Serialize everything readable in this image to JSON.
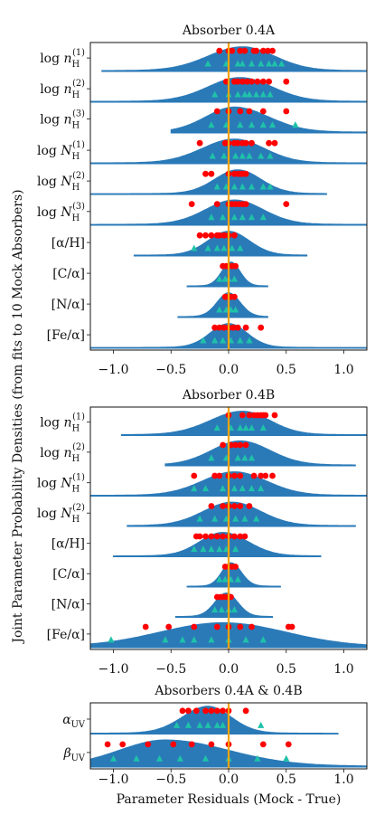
{
  "figure": {
    "ylabel": "Joint Parameter Probability Densities (from fits to 10 Mock Absorbers)",
    "xlabel": "Parameter Residuals (Mock - True)"
  },
  "chart_data": [
    {
      "type": "violin",
      "title": "Absorber 0.4A",
      "xlim": [
        -1.2,
        1.2
      ],
      "xticks": [
        -1.0,
        -0.5,
        0.0,
        0.5,
        1.0
      ],
      "xtick_labels": [
        "−1.0",
        "−0.5",
        "0.0",
        "0.5",
        "1.0"
      ],
      "reference_line": 0.0,
      "colors": {
        "violin": "#2a7ab8",
        "mock_fit": "#ff0000",
        "true": "#1fc2a8",
        "reference": "#f5a300"
      },
      "rows": [
        {
          "label": "log n_H^(1)",
          "center": 0.12,
          "sl": 0.3,
          "sr": 0.28,
          "xmin": -1.1,
          "xmax": 1.2,
          "h": 0.78,
          "red": [
            -0.08,
            0.0,
            0.03,
            0.1,
            0.14,
            0.22,
            0.24,
            0.3,
            0.34,
            0.38
          ],
          "green": [
            -0.18,
            -0.02,
            0.08,
            0.12,
            0.2,
            0.28,
            0.35,
            0.4,
            0.46
          ]
        },
        {
          "label": "log n_H^(2)",
          "center": 0.1,
          "sl": 0.28,
          "sr": 0.28,
          "xmin": -1.2,
          "xmax": 1.2,
          "h": 0.78,
          "red": [
            -0.02,
            0.05,
            0.08,
            0.12,
            0.16,
            0.2,
            0.25,
            0.3,
            0.35,
            0.5
          ],
          "green": [
            -0.12,
            0.0,
            0.08,
            0.14,
            0.18,
            0.24,
            0.3,
            0.36
          ]
        },
        {
          "label": "log n_H^(3)",
          "center": 0.05,
          "sl": 0.25,
          "sr": 0.3,
          "xmin": -0.5,
          "xmax": 1.2,
          "h": 0.82,
          "red": [
            -0.1,
            0.0,
            0.1,
            0.18,
            0.3,
            0.5
          ],
          "green": [
            -0.15,
            -0.02,
            0.1,
            0.2,
            0.3,
            0.38,
            0.58
          ]
        },
        {
          "label": "log N_H^(1)",
          "center": 0.05,
          "sl": 0.28,
          "sr": 0.26,
          "xmin": -1.2,
          "xmax": 1.2,
          "h": 0.78,
          "red": [
            -0.25,
            -0.03,
            0.0,
            0.05,
            0.08,
            0.12,
            0.15,
            0.2,
            0.35,
            0.4
          ],
          "green": [
            -0.14,
            -0.04,
            0.06,
            0.12,
            0.18,
            0.28,
            0.36
          ]
        },
        {
          "label": "log N_H^(2)",
          "center": 0.08,
          "sl": 0.2,
          "sr": 0.2,
          "xmin": -1.2,
          "xmax": 0.85,
          "h": 0.78,
          "red": [
            -0.2,
            -0.15,
            0.0,
            0.05,
            0.08,
            0.1,
            0.12,
            0.15
          ],
          "green": [
            -0.1,
            -0.02,
            0.05,
            0.12,
            0.2,
            0.3,
            0.36
          ]
        },
        {
          "label": "log N_H^(3)",
          "center": 0.05,
          "sl": 0.25,
          "sr": 0.25,
          "xmin": -1.2,
          "xmax": 1.2,
          "h": 0.8,
          "red": [
            -0.32,
            -0.1,
            0.0,
            0.03,
            0.06,
            0.09,
            0.12,
            0.15,
            0.5
          ],
          "green": [
            -0.15,
            -0.05,
            0.05,
            0.12,
            0.2,
            0.3
          ]
        },
        {
          "label": "[α/H]",
          "center": 0.0,
          "sl": 0.18,
          "sr": 0.18,
          "xmin": -0.82,
          "xmax": 0.68,
          "h": 0.78,
          "red": [
            -0.25,
            -0.2,
            -0.15,
            -0.1,
            -0.08,
            -0.04,
            0.0,
            0.05
          ],
          "green": [
            -0.3,
            -0.18,
            -0.1,
            -0.04,
            0.03,
            0.1
          ]
        },
        {
          "label": "[C/α]",
          "center": 0.02,
          "sl": 0.08,
          "sr": 0.08,
          "xmin": -0.36,
          "xmax": 0.34,
          "h": 0.78,
          "red": [
            -0.05,
            -0.02,
            0.0,
            0.03,
            0.06
          ],
          "green": [
            -0.08,
            -0.03,
            0.0,
            0.05
          ]
        },
        {
          "label": "[N/α]",
          "center": 0.0,
          "sl": 0.1,
          "sr": 0.1,
          "xmin": -0.44,
          "xmax": 0.34,
          "h": 0.78,
          "red": [
            -0.03,
            0.0,
            0.02,
            0.05
          ],
          "green": [
            -0.08,
            -0.02,
            0.02,
            0.06
          ]
        },
        {
          "label": "[Fe/α]",
          "center": 0.0,
          "sl": 0.16,
          "sr": 0.16,
          "xmin": -1.2,
          "xmax": 1.2,
          "h": 0.78,
          "red": [
            -0.12,
            -0.08,
            -0.04,
            0.0,
            0.04,
            0.08,
            0.15,
            0.28
          ],
          "green": [
            -0.22,
            -0.12,
            -0.05,
            0.02,
            0.1,
            0.18
          ]
        }
      ]
    },
    {
      "type": "violin",
      "title": "Absorber 0.4B",
      "xlim": [
        -1.2,
        1.2
      ],
      "xticks": [
        -1.0,
        -0.5,
        0.0,
        0.5,
        1.0
      ],
      "xtick_labels": [
        "−1.0",
        "−0.5",
        "0.0",
        "0.5",
        "1.0"
      ],
      "reference_line": 0.0,
      "colors": {
        "violin": "#2a7ab8",
        "mock_fit": "#ff0000",
        "true": "#1fc2a8",
        "reference": "#f5a300"
      },
      "rows": [
        {
          "label": "log n_H^(1)",
          "center": 0.12,
          "sl": 0.28,
          "sr": 0.24,
          "xmin": -0.93,
          "xmax": 1.2,
          "h": 0.78,
          "red": [
            0.0,
            0.12,
            0.18,
            0.22,
            0.25,
            0.28,
            0.3,
            0.32,
            0.4
          ],
          "green": [
            -0.1,
            0.02,
            0.1,
            0.15,
            0.2,
            0.3
          ]
        },
        {
          "label": "log n_H^(2)",
          "center": 0.1,
          "sl": 0.25,
          "sr": 0.26,
          "xmin": -0.55,
          "xmax": 1.1,
          "h": 0.8,
          "red": [
            -0.05,
            0.02,
            0.06,
            0.1,
            0.15
          ],
          "green": [
            -0.15,
            -0.02,
            0.08,
            0.14,
            0.2
          ]
        },
        {
          "label": "log N_H^(1)",
          "center": 0.05,
          "sl": 0.28,
          "sr": 0.28,
          "xmin": -1.2,
          "xmax": 1.2,
          "h": 0.78,
          "red": [
            -0.3,
            -0.12,
            -0.08,
            0.0,
            0.05,
            0.1,
            0.22,
            0.28,
            0.32,
            0.38
          ],
          "green": [
            -0.3,
            -0.2,
            -0.05,
            0.05,
            0.12,
            0.2,
            0.28
          ]
        },
        {
          "label": "log N_H^(2)",
          "center": 0.03,
          "sl": 0.25,
          "sr": 0.25,
          "xmin": -0.88,
          "xmax": 1.1,
          "h": 0.78,
          "red": [
            -0.15,
            -0.05,
            0.0,
            0.05,
            0.1,
            0.18
          ],
          "green": [
            -0.25,
            -0.12,
            -0.02,
            0.06,
            0.14,
            0.24
          ]
        },
        {
          "label": "[α/H]",
          "center": -0.05,
          "sl": 0.2,
          "sr": 0.22,
          "xmin": -1.0,
          "xmax": 0.8,
          "h": 0.78,
          "red": [
            -0.28,
            -0.25,
            -0.2,
            -0.15,
            -0.1,
            -0.05,
            0.0,
            0.05,
            0.1,
            0.14
          ],
          "green": [
            -0.3,
            -0.22,
            -0.15,
            -0.08,
            -0.02,
            0.06
          ]
        },
        {
          "label": "[C/α]",
          "center": 0.02,
          "sl": 0.08,
          "sr": 0.09,
          "xmin": -0.36,
          "xmax": 0.45,
          "h": 0.78,
          "red": [
            -0.03,
            0.0,
            0.03,
            0.06
          ],
          "green": [
            -0.08,
            -0.03,
            0.02,
            0.08
          ]
        },
        {
          "label": "[N/α]",
          "center": -0.02,
          "sl": 0.1,
          "sr": 0.1,
          "xmin": -0.46,
          "xmax": 0.38,
          "h": 0.78,
          "red": [
            -0.1,
            -0.07,
            -0.04,
            -0.01,
            0.02
          ],
          "green": [
            -0.12,
            -0.06,
            0.0,
            0.05
          ]
        },
        {
          "label": "[Fe/α]",
          "center": -0.05,
          "sl": 0.55,
          "sr": 0.55,
          "xmin": -1.2,
          "xmax": 1.2,
          "h": 0.8,
          "red": [
            -0.72,
            -0.52,
            -0.3,
            -0.1,
            0.0,
            0.1,
            0.2,
            0.52,
            0.55
          ],
          "green": [
            -1.02,
            -0.55,
            -0.4,
            -0.3,
            -0.15,
            0.0,
            0.15,
            0.3
          ]
        }
      ]
    },
    {
      "type": "violin",
      "title": "Absorbers 0.4A & 0.4B",
      "xlim": [
        -1.2,
        1.2
      ],
      "xticks": [
        -1.0,
        -0.5,
        0.0,
        0.5,
        1.0
      ],
      "xtick_labels": [
        "−1.0",
        "−0.5",
        "0.0",
        "0.5",
        "1.0"
      ],
      "reference_line": 0.0,
      "colors": {
        "violin": "#2a7ab8",
        "mock_fit": "#ff0000",
        "true": "#1fc2a8",
        "reference": "#f5a300"
      },
      "rows": [
        {
          "label": "α_UV",
          "center": -0.18,
          "sl": 0.22,
          "sr": 0.2,
          "xmin": -1.2,
          "xmax": 0.95,
          "h": 0.82,
          "red": [
            -0.4,
            -0.35,
            -0.28,
            -0.2,
            -0.15,
            -0.1,
            -0.05,
            0.0,
            0.15
          ],
          "green": [
            -0.45,
            -0.35,
            -0.25,
            -0.18,
            -0.1,
            -0.05,
            0.28
          ]
        },
        {
          "label": "β_UV",
          "center": -0.55,
          "sl": 0.4,
          "sr": 0.55,
          "xmin": -1.2,
          "xmax": 1.2,
          "h": 0.8,
          "red": [
            -1.05,
            -0.92,
            -0.7,
            -0.48,
            -0.32,
            -0.15,
            0.0,
            0.3,
            0.52
          ],
          "green": [
            -1.0,
            -0.8,
            -0.6,
            -0.42,
            -0.2,
            0.0,
            0.25,
            0.5
          ]
        }
      ]
    }
  ]
}
